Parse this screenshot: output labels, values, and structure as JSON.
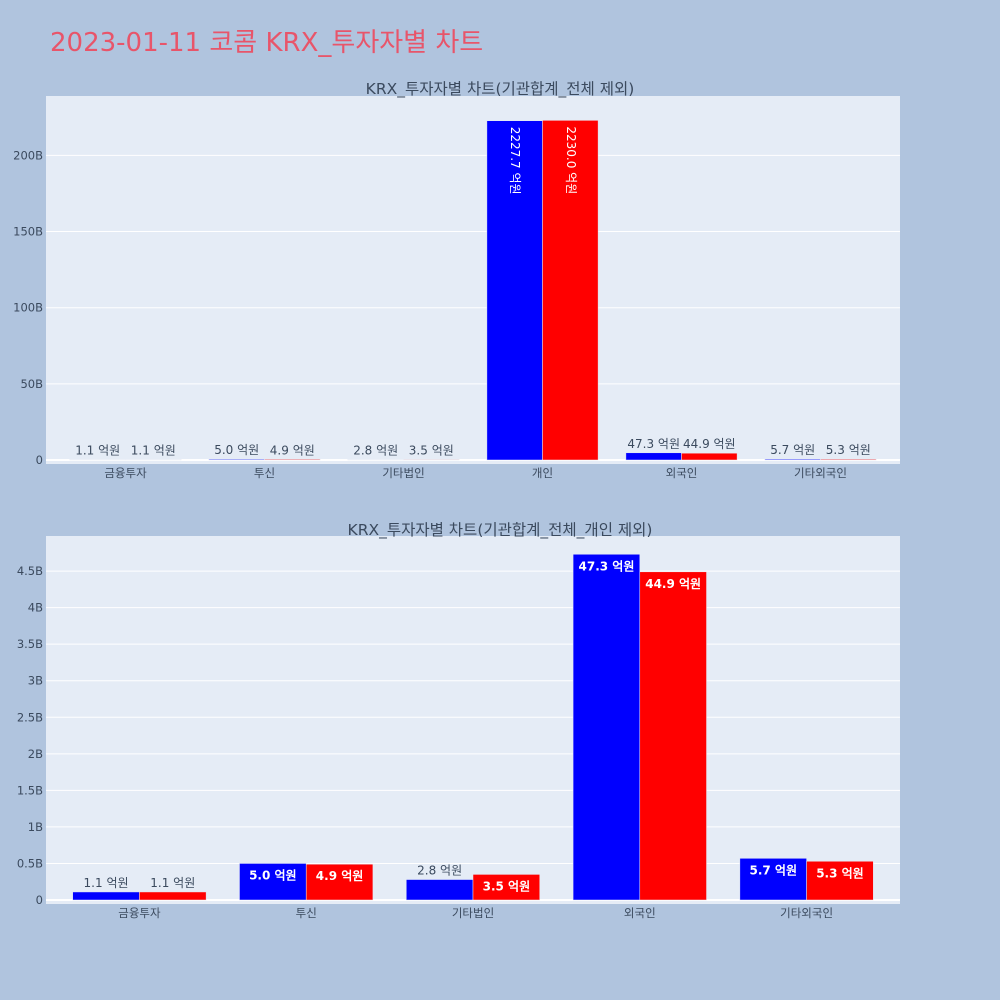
{
  "title": "2023-01-11 코콤 KRX_투자자별 차트",
  "colors": {
    "series_a": "#0000ff",
    "series_b": "#ff0000",
    "panel_bg": "#e5ecf6",
    "page_bg": "#b0c4de"
  },
  "chart_data": [
    {
      "type": "bar",
      "title": "KRX_투자자별 차트(기관합계_전체 제외)",
      "categories": [
        "금융투자",
        "투신",
        "기타법인",
        "개인",
        "외국인",
        "기타외국인"
      ],
      "series": [
        {
          "values": [
            0.11,
            0.5,
            0.28,
            222.77,
            4.73,
            0.57
          ],
          "labels": [
            "1.1 억원",
            "5.0 억원",
            "2.8 억원",
            "2227.7 억원",
            "47.3 억원",
            "5.7 억원"
          ]
        },
        {
          "values": [
            0.11,
            0.49,
            0.35,
            223.0,
            4.49,
            0.53
          ],
          "labels": [
            "1.1 억원",
            "4.9 억원",
            "3.5 억원",
            "2230.0 억원",
            "44.9 억원",
            "5.3 억원"
          ]
        }
      ],
      "ylim": [
        0,
        239
      ],
      "yticks": [
        0,
        50,
        100,
        150,
        200
      ],
      "ytick_labels": [
        "0",
        "50B",
        "100B",
        "150B",
        "200B"
      ],
      "grid": true,
      "xlabel": "",
      "ylabel": ""
    },
    {
      "type": "bar",
      "title": "KRX_투자자별 차트(기관합계_전체_개인 제외)",
      "categories": [
        "금융투자",
        "투신",
        "기타법인",
        "외국인",
        "기타외국인"
      ],
      "series": [
        {
          "values": [
            0.11,
            0.5,
            0.28,
            4.73,
            0.57
          ],
          "labels": [
            "1.1 억원",
            "5.0 억원",
            "2.8 억원",
            "47.3 억원",
            "5.7 억원"
          ]
        },
        {
          "values": [
            0.11,
            0.49,
            0.35,
            4.49,
            0.53
          ],
          "labels": [
            "1.1 억원",
            "4.9 억원",
            "3.5 억원",
            "44.9 억원",
            "5.3 억원"
          ]
        }
      ],
      "ylim": [
        0,
        4.98
      ],
      "yticks": [
        0,
        0.5,
        1,
        1.5,
        2,
        2.5,
        3,
        3.5,
        4,
        4.5
      ],
      "ytick_labels": [
        "0",
        "0.5B",
        "1B",
        "1.5B",
        "2B",
        "2.5B",
        "3B",
        "3.5B",
        "4B",
        "4.5B"
      ],
      "grid": true,
      "xlabel": "",
      "ylabel": ""
    }
  ]
}
